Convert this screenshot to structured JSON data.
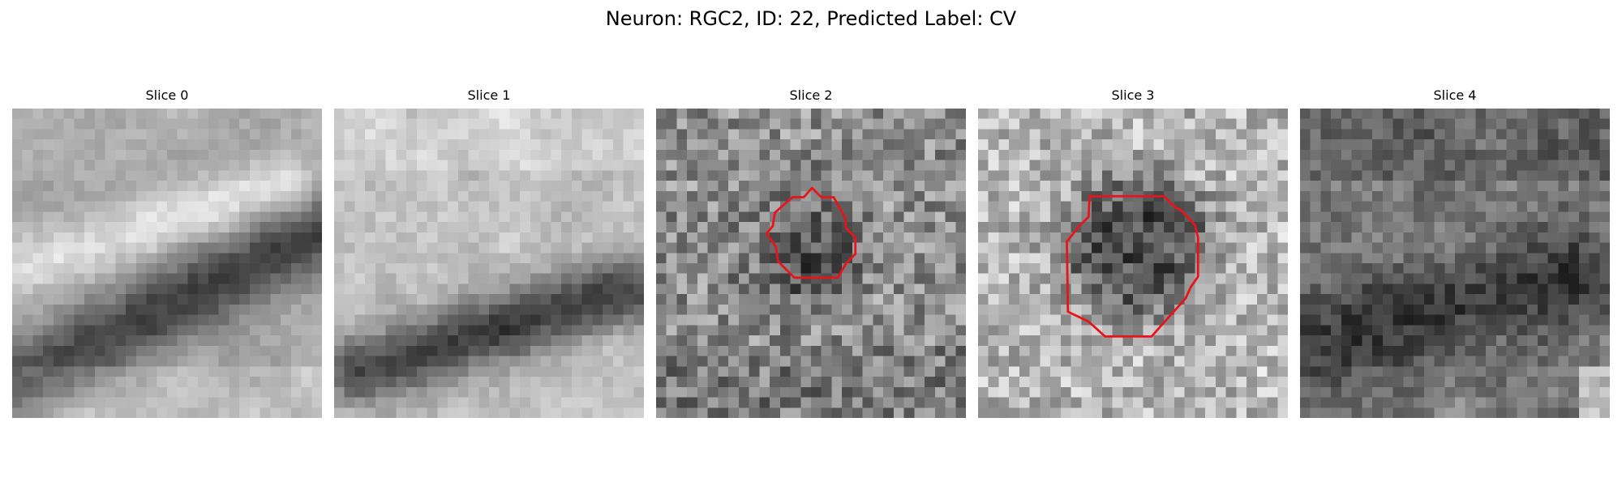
{
  "figure": {
    "title": "Neuron: RGC2, ID: 22, Predicted Label: CV"
  },
  "panels": [
    {
      "title": "Slice 0",
      "has_contour": false
    },
    {
      "title": "Slice 1",
      "has_contour": false
    },
    {
      "title": "Slice 2",
      "has_contour": true
    },
    {
      "title": "Slice 3",
      "has_contour": true
    },
    {
      "title": "Slice 4",
      "has_contour": false
    }
  ],
  "colors": {
    "contour": "#e8141c",
    "colormap": "gray"
  }
}
